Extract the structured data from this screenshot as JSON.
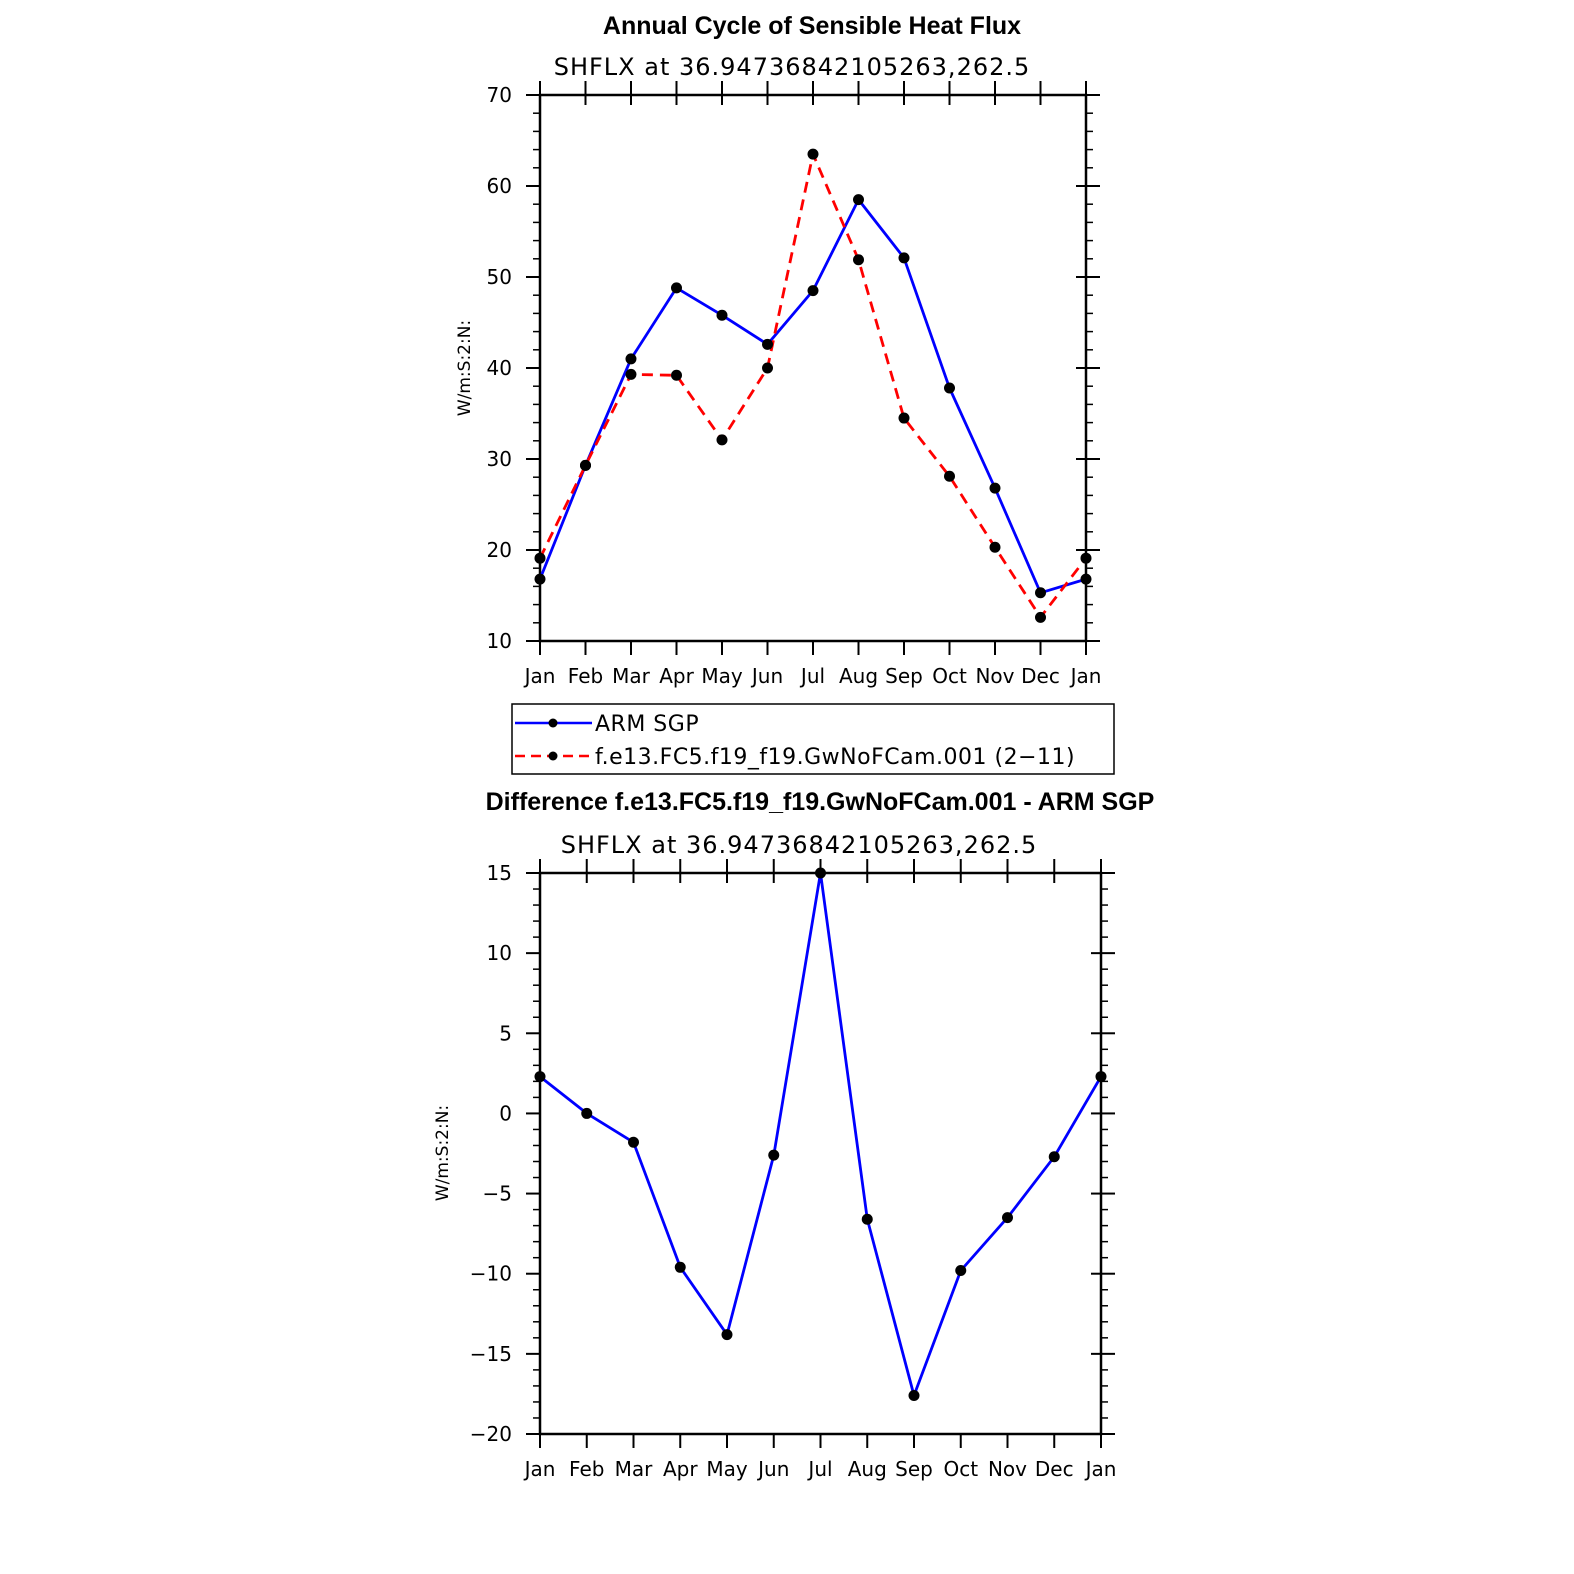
{
  "chart_data": [
    {
      "type": "line",
      "title": "Annual Cycle of Sensible Heat Flux",
      "subtitle": "SHFLX  at  36.94736842105263,262.5",
      "ylabel": "W/m:S:2:N:",
      "xlabel": "",
      "categories": [
        "Jan",
        "Feb",
        "Mar",
        "Apr",
        "May",
        "Jun",
        "Jul",
        "Aug",
        "Sep",
        "Oct",
        "Nov",
        "Dec",
        "Jan"
      ],
      "ylim": [
        10,
        70
      ],
      "yticks": [
        "10",
        "20",
        "30",
        "40",
        "50",
        "60",
        "70"
      ],
      "grid": false,
      "legend": "bottom",
      "series": [
        {
          "name": "ARM  SGP",
          "color": "#0000ff",
          "dash": "solid",
          "values": [
            16.8,
            29.3,
            41.0,
            48.8,
            45.8,
            42.6,
            48.5,
            58.5,
            52.1,
            37.8,
            26.8,
            15.3,
            16.8
          ]
        },
        {
          "name": "f.e13.FC5.f19_f19.GwNoFCam.001  (2−11)",
          "color": "#ff0000",
          "dash": "dashed",
          "values": [
            19.1,
            29.3,
            39.3,
            39.2,
            32.1,
            40.0,
            63.5,
            51.9,
            34.5,
            28.1,
            20.3,
            12.6,
            19.1
          ]
        }
      ]
    },
    {
      "type": "line",
      "title": "Difference f.e13.FC5.f19_f19.GwNoFCam.001 - ARM SGP",
      "subtitle": "SHFLX  at  36.94736842105263,262.5",
      "ylabel": "W/m:S:2:N:",
      "xlabel": "",
      "categories": [
        "Jan",
        "Feb",
        "Mar",
        "Apr",
        "May",
        "Jun",
        "Jul",
        "Aug",
        "Sep",
        "Oct",
        "Nov",
        "Dec",
        "Jan"
      ],
      "ylim": [
        -20,
        15
      ],
      "yticks": [
        "−20",
        "−15",
        "−10",
        "−5",
        "0",
        "5",
        "10",
        "15"
      ],
      "grid": false,
      "series": [
        {
          "name": "Difference",
          "color": "#0000ff",
          "dash": "solid",
          "values": [
            2.3,
            0.0,
            -1.8,
            -9.6,
            -13.8,
            -2.6,
            15.0,
            -6.6,
            -17.6,
            -9.8,
            -6.5,
            -2.7,
            2.3
          ]
        }
      ]
    }
  ]
}
